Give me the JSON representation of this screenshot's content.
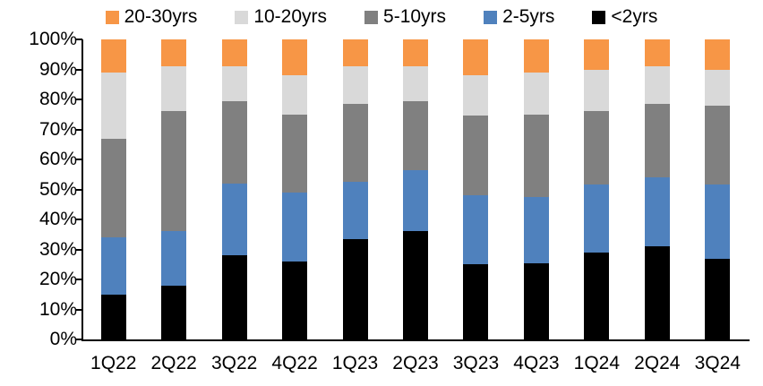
{
  "chart_data": {
    "type": "bar",
    "stacked": true,
    "percent_stacked": true,
    "title": "",
    "xlabel": "",
    "ylabel": "",
    "ylim": [
      0,
      100
    ],
    "grid": false,
    "legend_position": "top",
    "axis_color": "#000000",
    "categories": [
      "1Q22",
      "2Q22",
      "3Q22",
      "4Q22",
      "1Q23",
      "2Q23",
      "3Q23",
      "4Q23",
      "1Q24",
      "2Q24",
      "3Q24"
    ],
    "y_ticks": [
      "100%",
      "90%",
      "80%",
      "70%",
      "60%",
      "50%",
      "40%",
      "30%",
      "20%",
      "10%",
      "0%"
    ],
    "series": [
      {
        "name": "20-30yrs",
        "color": "#F79646",
        "values": [
          11,
          9,
          9,
          12,
          9,
          9,
          12,
          11,
          10,
          9,
          10
        ]
      },
      {
        "name": "10-20yrs",
        "color": "#D9D9D9",
        "values": [
          22,
          15,
          11.5,
          13,
          12.5,
          11.5,
          13.5,
          14,
          14,
          12.5,
          12
        ]
      },
      {
        "name": "5-10yrs",
        "color": "#808080",
        "values": [
          33,
          40,
          27.5,
          26,
          26,
          23,
          26.5,
          27.5,
          24.5,
          24.5,
          26.5
        ]
      },
      {
        "name": "2-5yrs",
        "color": "#4F81BD",
        "values": [
          19,
          18,
          24,
          23,
          19,
          20.5,
          23,
          22,
          22.5,
          23,
          24.5
        ]
      },
      {
        "name": "<2yrs",
        "color": "#000000",
        "values": [
          15,
          18,
          28,
          26,
          33.5,
          36,
          25,
          25.5,
          29,
          31,
          27
        ]
      }
    ]
  }
}
